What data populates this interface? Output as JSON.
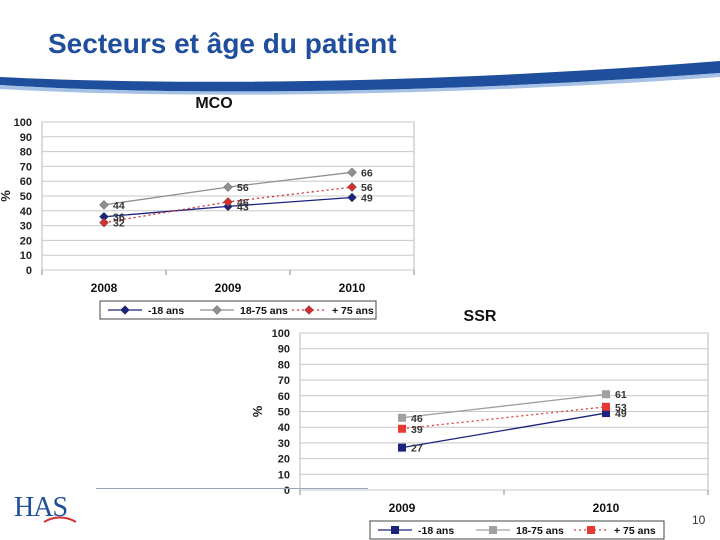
{
  "slide": {
    "title": "Secteurs et âge du patient",
    "page_number": "10",
    "logo_text": "HAS",
    "accent_color": "#1f4e9c"
  },
  "chart_data": [
    {
      "type": "line",
      "title": "MCO",
      "xlabel": "",
      "ylabel": "%",
      "categories": [
        "2008",
        "2009",
        "2010"
      ],
      "ylim": [
        0,
        100
      ],
      "yticks": [
        0,
        10,
        20,
        30,
        40,
        50,
        60,
        70,
        80,
        90,
        100
      ],
      "grid": true,
      "legend_position": "bottom",
      "series": [
        {
          "name": "-18 ans",
          "values": [
            36,
            43,
            49
          ],
          "labels": [
            "36",
            "43",
            "49"
          ],
          "color": "#1a237e",
          "marker": "diamond",
          "dash": "solid"
        },
        {
          "name": "18-75 ans",
          "values": [
            44,
            56,
            66
          ],
          "labels": [
            "44",
            "56",
            "66"
          ],
          "color": "#909090",
          "marker": "diamond",
          "dash": "solid"
        },
        {
          "name": "+ 75 ans",
          "values": [
            32,
            46,
            56
          ],
          "labels": [
            "32",
            "46",
            "56"
          ],
          "color": "#d32f2f",
          "marker": "diamond",
          "dash": "dot"
        }
      ]
    },
    {
      "type": "line",
      "title": "SSR",
      "xlabel": "",
      "ylabel": "%",
      "categories": [
        "2009",
        "2010"
      ],
      "ylim": [
        0,
        100
      ],
      "yticks": [
        0,
        10,
        20,
        30,
        40,
        50,
        60,
        70,
        80,
        90,
        100
      ],
      "grid": true,
      "legend_position": "bottom",
      "series": [
        {
          "name": "-18 ans",
          "values": [
            27,
            49
          ],
          "labels": [
            "27",
            "49"
          ],
          "color": "#1a237e",
          "marker": "square",
          "dash": "solid"
        },
        {
          "name": "18-75 ans",
          "values": [
            46,
            61
          ],
          "labels": [
            "46",
            "61"
          ],
          "color": "#a0a0a0",
          "marker": "square",
          "dash": "solid"
        },
        {
          "name": "+ 75 ans",
          "values": [
            39,
            53
          ],
          "labels": [
            "39",
            "53"
          ],
          "color": "#e53935",
          "marker": "square",
          "dash": "dot"
        }
      ]
    }
  ]
}
